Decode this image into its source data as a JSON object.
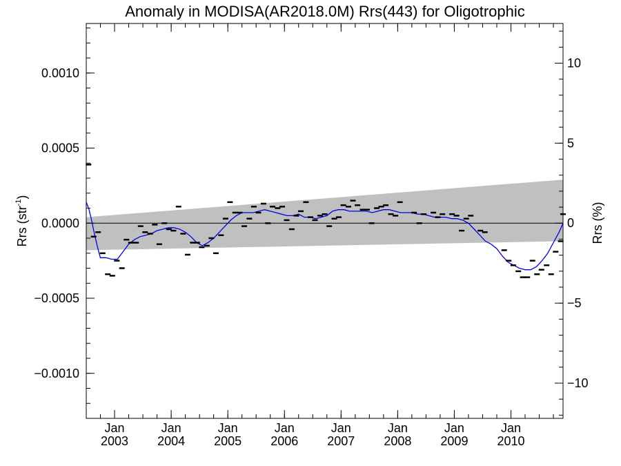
{
  "chart_data": {
    "type": "line",
    "title": "Anomaly in MODISA(AR2018.0M) Rrs(443) for Oligotrophic",
    "ylabel_left": "Rrs (str",
    "ylabel_left_sup": "-1",
    "ylabel_left_close": ")",
    "ylabel_right": "Rrs (%)",
    "xlim": [
      2002.5,
      2010.92
    ],
    "ylim": [
      -0.0013,
      0.00133
    ],
    "y2lim": [
      -12.2,
      12.48
    ],
    "y_ticks": [
      {
        "value": 0.001,
        "label": "0.0010"
      },
      {
        "value": 0.0005,
        "label": "0.0005"
      },
      {
        "value": 0.0,
        "label": "0.0000"
      },
      {
        "value": -0.0005,
        "label": "−0.0005"
      },
      {
        "value": -0.001,
        "label": "−0.0010"
      }
    ],
    "y2_ticks": [
      {
        "value": 10,
        "label": "10"
      },
      {
        "value": 5,
        "label": "5"
      },
      {
        "value": 0,
        "label": "0"
      },
      {
        "value": -5,
        "label": "−5"
      },
      {
        "value": -10,
        "label": "−10"
      }
    ],
    "x_ticks": [
      {
        "value": 2003.0,
        "month": "Jan",
        "year": "2003"
      },
      {
        "value": 2004.0,
        "month": "Jan",
        "year": "2004"
      },
      {
        "value": 2005.0,
        "month": "Jan",
        "year": "2005"
      },
      {
        "value": 2006.0,
        "month": "Jan",
        "year": "2006"
      },
      {
        "value": 2007.0,
        "month": "Jan",
        "year": "2007"
      },
      {
        "value": 2008.0,
        "month": "Jan",
        "year": "2008"
      },
      {
        "value": 2009.0,
        "month": "Jan",
        "year": "2009"
      },
      {
        "value": 2010.0,
        "month": "Jan",
        "year": "2010"
      }
    ],
    "confidence_band": {
      "color": "#c0c0c0",
      "x": [
        2002.5,
        2010.92
      ],
      "upper": [
        4e-05,
        0.00029
      ],
      "lower": [
        -0.00018,
        -0.00012
      ]
    },
    "zero_line": {
      "value": 0.0,
      "color": "#000000"
    },
    "monthly_anomaly": {
      "color": "#000000",
      "x": [
        2002.54,
        2002.63,
        2002.71,
        2002.79,
        2002.88,
        2002.96,
        2003.04,
        2003.13,
        2003.21,
        2003.29,
        2003.38,
        2003.46,
        2003.54,
        2003.63,
        2003.71,
        2003.79,
        2003.88,
        2003.96,
        2004.04,
        2004.13,
        2004.21,
        2004.29,
        2004.38,
        2004.46,
        2004.54,
        2004.63,
        2004.71,
        2004.79,
        2004.88,
        2004.96,
        2005.04,
        2005.13,
        2005.21,
        2005.29,
        2005.38,
        2005.46,
        2005.54,
        2005.63,
        2005.71,
        2005.79,
        2005.88,
        2005.96,
        2006.04,
        2006.13,
        2006.21,
        2006.29,
        2006.38,
        2006.46,
        2006.54,
        2006.63,
        2006.71,
        2006.79,
        2006.88,
        2006.96,
        2007.04,
        2007.13,
        2007.21,
        2007.29,
        2007.38,
        2007.46,
        2007.54,
        2007.63,
        2007.71,
        2007.79,
        2007.88,
        2007.96,
        2008.04,
        2008.29,
        2008.38,
        2008.46,
        2008.63,
        2008.71,
        2008.79,
        2008.96,
        2009.04,
        2009.13,
        2009.21,
        2009.29,
        2009.46,
        2009.54,
        2009.88,
        2009.96,
        2010.04,
        2010.13,
        2010.21,
        2010.29,
        2010.38,
        2010.46,
        2010.54,
        2010.63,
        2010.71,
        2010.79,
        2010.88,
        2010.92
      ],
      "y": [
        0.00039,
        -9e-05,
        -6e-05,
        -0.0002,
        -0.00034,
        -0.00035,
        -0.00025,
        -0.0003,
        -0.00011,
        -0.00013,
        -0.00013,
        -2e-05,
        -6e-05,
        -7e-05,
        -1e-05,
        -0.00014,
        0.0,
        -4e-05,
        -5e-05,
        0.00011,
        -7e-05,
        -0.00021,
        -0.00013,
        -0.00013,
        -0.00016,
        -0.00015,
        -0.0001,
        -0.0002,
        -8e-05,
        3e-05,
        0.00014,
        7e-05,
        7e-05,
        -2e-05,
        3e-05,
        0.00011,
        7e-05,
        0.00013,
        0.0,
        0.00011,
        0.0001,
        0.00011,
        2e-05,
        -4e-05,
        5e-05,
        8e-05,
        0.00014,
        4e-05,
        2e-05,
        5e-05,
        6e-05,
        -2e-05,
        3e-05,
        4e-05,
        0.00012,
        0.00011,
        0.00015,
        0.00012,
        9e-05,
        9e-05,
        0.0,
        0.0001,
        0.00011,
        0.00012,
        6e-05,
        5e-05,
        0.00014,
        7e-05,
        0.0,
        6e-05,
        7e-05,
        4e-05,
        6e-05,
        6e-05,
        5e-05,
        -5e-05,
        3e-05,
        5e-05,
        -5e-05,
        -6e-05,
        -0.00018,
        -0.00025,
        -0.00028,
        -0.00032,
        -0.00036,
        -0.00036,
        -0.00025,
        -0.00034,
        -0.00031,
        -0.00028,
        -0.00034,
        -0.00019,
        -0.00012,
        6e-05
      ]
    },
    "smoothed_anomaly": {
      "color": "#0000e6",
      "x": [
        2002.5,
        2002.55,
        2002.6,
        2002.65,
        2002.7,
        2002.75,
        2002.85,
        2002.95,
        2003.05,
        2003.15,
        2003.25,
        2003.35,
        2003.45,
        2003.55,
        2003.65,
        2003.75,
        2003.85,
        2003.95,
        2004.05,
        2004.15,
        2004.25,
        2004.35,
        2004.45,
        2004.55,
        2004.65,
        2004.75,
        2004.85,
        2004.95,
        2005.05,
        2005.15,
        2005.25,
        2005.35,
        2005.45,
        2005.55,
        2005.65,
        2005.75,
        2005.85,
        2005.95,
        2006.05,
        2006.15,
        2006.25,
        2006.35,
        2006.45,
        2006.55,
        2006.65,
        2006.75,
        2006.85,
        2006.95,
        2007.05,
        2007.15,
        2007.25,
        2007.35,
        2007.45,
        2007.55,
        2007.65,
        2007.75,
        2007.85,
        2007.95,
        2008.05,
        2008.15,
        2008.25,
        2008.35,
        2008.45,
        2008.55,
        2008.65,
        2008.75,
        2008.85,
        2008.95,
        2009.05,
        2009.15,
        2009.25,
        2009.35,
        2009.45,
        2009.55,
        2009.65,
        2009.75,
        2009.85,
        2009.95,
        2010.05,
        2010.15,
        2010.25,
        2010.35,
        2010.45,
        2010.55,
        2010.65,
        2010.75,
        2010.85,
        2010.92
      ],
      "y": [
        0.00014,
        9e-05,
        1e-05,
        -8e-05,
        -0.00016,
        -0.00023,
        -0.00023,
        -0.00024,
        -0.00024,
        -0.00019,
        -0.00014,
        -0.00011,
        -9e-05,
        -8e-05,
        -7e-05,
        -5e-05,
        -4e-05,
        -3e-05,
        -3e-05,
        -4e-05,
        -6e-05,
        -9e-05,
        -0.00013,
        -0.00015,
        -0.00013,
        -0.0001,
        -6e-05,
        -2e-05,
        2e-05,
        5e-05,
        7e-05,
        7e-05,
        7e-05,
        8e-05,
        9e-05,
        8e-05,
        7e-05,
        6e-05,
        5e-05,
        5e-05,
        6e-05,
        4e-05,
        4e-05,
        3e-05,
        4e-05,
        5e-05,
        8e-05,
        9e-05,
        9e-05,
        8e-05,
        8e-05,
        8e-05,
        8e-05,
        7e-05,
        8e-05,
        9e-05,
        9e-05,
        8e-05,
        7e-05,
        7e-05,
        7e-05,
        6e-05,
        6e-05,
        5e-05,
        4e-05,
        4e-05,
        4e-05,
        3e-05,
        3e-05,
        2e-05,
        0.0,
        -4e-05,
        -8e-05,
        -0.00012,
        -0.00014,
        -0.00017,
        -0.00022,
        -0.00026,
        -0.00028,
        -0.0003,
        -0.00031,
        -0.00031,
        -0.00029,
        -0.00025,
        -0.0002,
        -0.00013,
        -6e-05,
        0.0
      ]
    },
    "grid": false
  }
}
